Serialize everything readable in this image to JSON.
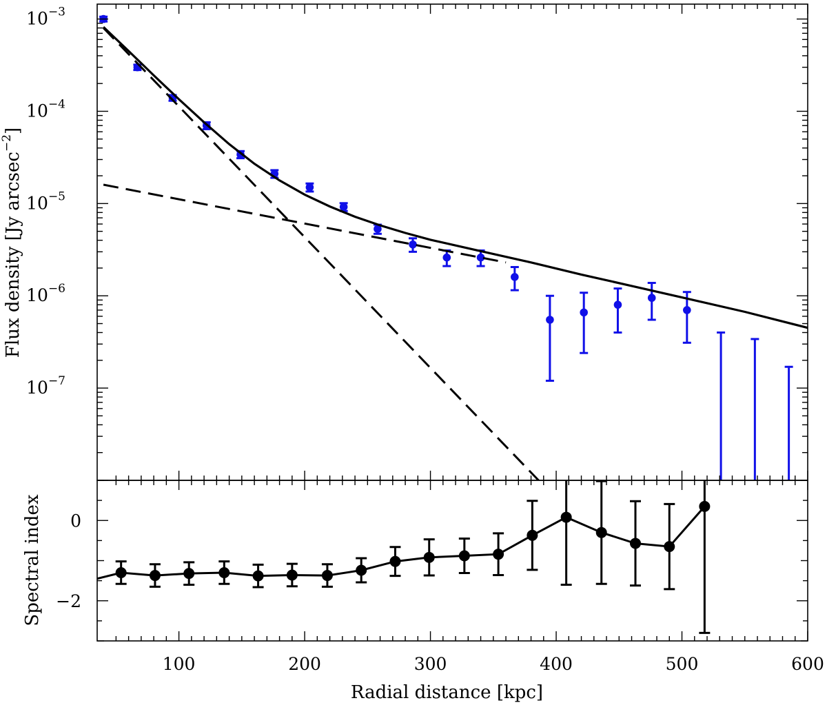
{
  "chart_data": [
    {
      "type": "scatter",
      "panel": "top",
      "ylabel": "Flux density [Jy arcsec",
      "ylabel_sup": "−2",
      "ylabel_close": "]",
      "xlim": [
        35,
        600
      ],
      "ylim": [
        1e-08,
        0.00145
      ],
      "yscale": "log",
      "y_ticks": [
        {
          "value": 0.001,
          "base": "10",
          "exp": "−3"
        },
        {
          "value": 0.0001,
          "base": "10",
          "exp": "−4"
        },
        {
          "value": 1e-05,
          "base": "10",
          "exp": "−5"
        },
        {
          "value": 1e-06,
          "base": "10",
          "exp": "−6"
        },
        {
          "value": 1e-07,
          "base": "10",
          "exp": "−7"
        }
      ],
      "series": [
        {
          "kind": "points",
          "color": "#1010e8",
          "x": [
            40,
            67,
            95,
            122,
            149,
            176,
            204,
            231,
            258,
            286,
            313,
            340,
            367,
            395,
            422,
            449,
            476,
            504,
            531,
            558,
            585
          ],
          "y": [
            0.001,
            0.0003,
            0.00014,
            7e-05,
            3.4e-05,
            2.1e-05,
            1.5e-05,
            9.2e-06,
            5.3e-06,
            3.6e-06,
            2.6e-06,
            2.6e-06,
            1.6e-06,
            5.5e-07,
            6.6e-07,
            8e-07,
            9.5e-07,
            7e-07,
            null,
            null,
            null
          ],
          "ylo": [
            0.00094,
            0.00028,
            0.00013,
            6.4e-05,
            3.1e-05,
            1.9e-05,
            1.35e-05,
            8.3e-06,
            4.7e-06,
            3e-06,
            2.1e-06,
            2.1e-06,
            1.15e-06,
            1.2e-07,
            2.4e-07,
            4e-07,
            5.5e-07,
            3.1e-07,
            1e-08,
            1e-08,
            1e-08
          ],
          "yhi": [
            0.00106,
            0.00032,
            0.00015,
            7.6e-05,
            3.7e-05,
            2.3e-05,
            1.65e-05,
            1.01e-05,
            5.9e-06,
            4.2e-06,
            3.1e-06,
            3.1e-06,
            2.05e-06,
            1e-06,
            1.08e-06,
            1.2e-06,
            1.38e-06,
            1.1e-06,
            4e-07,
            3.4e-07,
            1.7e-07
          ]
        },
        {
          "kind": "model",
          "style": "dashed",
          "x": [
            40,
            386
          ],
          "y": [
            0.0008,
            1e-08
          ]
        },
        {
          "kind": "model",
          "style": "dashed",
          "x": [
            40,
            360
          ],
          "y": [
            1.6e-05,
            2.3e-06
          ]
        },
        {
          "kind": "model",
          "style": "solid",
          "x": [
            40,
            60,
            80,
            100,
            120,
            140,
            160,
            180,
            200,
            220,
            240,
            260,
            280,
            300,
            340,
            380,
            420,
            460,
            500,
            550,
            600
          ],
          "y": [
            0.00082,
            0.00045,
            0.000245,
            0.000135,
            7.6e-05,
            4.4e-05,
            2.7e-05,
            1.78e-05,
            1.25e-05,
            9.3e-06,
            7.2e-06,
            5.8e-06,
            4.8e-06,
            4.05e-06,
            3.05e-06,
            2.3e-06,
            1.7e-06,
            1.28e-06,
            9.6e-07,
            6.7e-07,
            4.5e-07
          ]
        }
      ]
    },
    {
      "type": "line",
      "panel": "bottom",
      "xlabel": "Radial distance [kpc]",
      "ylabel": "Spectral index",
      "xlim": [
        35,
        600
      ],
      "ylim": [
        -3.0,
        1.0
      ],
      "x_ticks": [
        100,
        200,
        300,
        400,
        500,
        600
      ],
      "x_tick_labels": [
        "100",
        "200",
        "300",
        "400",
        "500",
        "600"
      ],
      "y_ticks": [
        0,
        -2
      ],
      "y_tick_labels": [
        "0",
        "−2"
      ],
      "series": [
        {
          "color": "#000000",
          "x": [
            54,
            81,
            108,
            136,
            163,
            190,
            218,
            245,
            272,
            299,
            327,
            354,
            381,
            408,
            436,
            463,
            490,
            518
          ],
          "y": [
            -1.3,
            -1.37,
            -1.32,
            -1.3,
            -1.38,
            -1.36,
            -1.37,
            -1.24,
            -1.02,
            -0.92,
            -0.88,
            -0.84,
            -0.37,
            0.08,
            -0.3,
            -0.57,
            -0.65,
            0.35
          ],
          "yerr": [
            0.28,
            0.28,
            0.28,
            0.28,
            0.28,
            0.28,
            0.28,
            0.3,
            0.36,
            0.45,
            0.43,
            0.52,
            0.86,
            1.68,
            1.28,
            1.05,
            1.06,
            3.15
          ],
          "line_start": [
            35,
            -1.45
          ]
        }
      ]
    }
  ]
}
